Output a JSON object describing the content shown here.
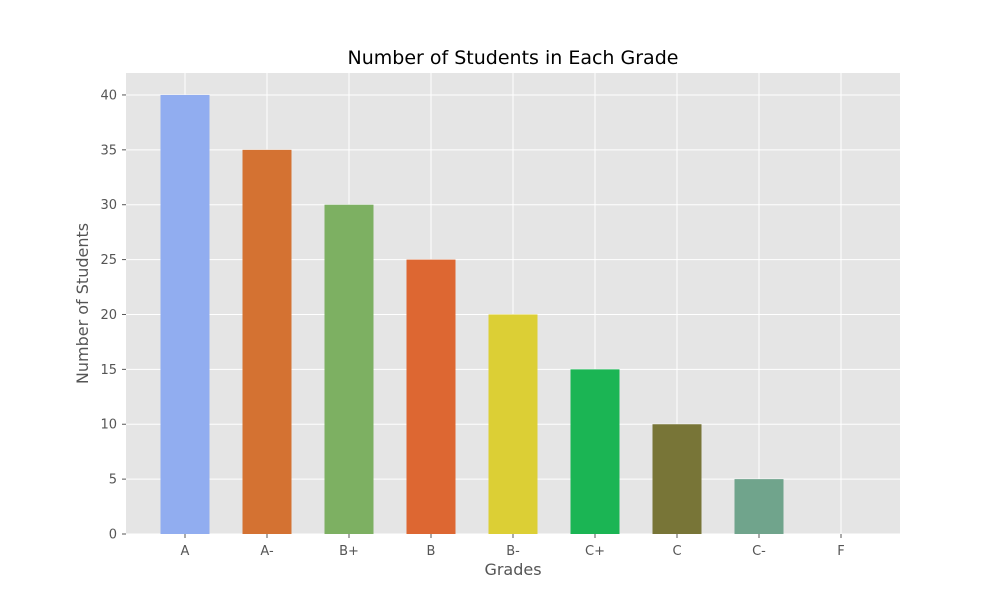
{
  "chart_data": {
    "type": "bar",
    "title": "Number of Students in Each Grade",
    "xlabel": "Grades",
    "ylabel": "Number of Students",
    "categories": [
      "A",
      "A-",
      "B+",
      "B",
      "B-",
      "C+",
      "C",
      "C-",
      "F"
    ],
    "values": [
      40,
      35,
      30,
      25,
      20,
      15,
      10,
      5,
      0
    ],
    "bar_colors": [
      "#91adf0",
      "#d47232",
      "#7db062",
      "#dd6732",
      "#dccf35",
      "#1bb554",
      "#787537",
      "#70a48c",
      "#7b8c52"
    ],
    "ylim": [
      0,
      42
    ],
    "yticks": [
      0,
      5,
      10,
      15,
      20,
      25,
      30,
      35,
      40
    ],
    "grid": true,
    "legend": "none",
    "style": {
      "plot_background": "#e5e5e5",
      "grid_color": "#ffffff",
      "tick_color": "#555555"
    }
  }
}
